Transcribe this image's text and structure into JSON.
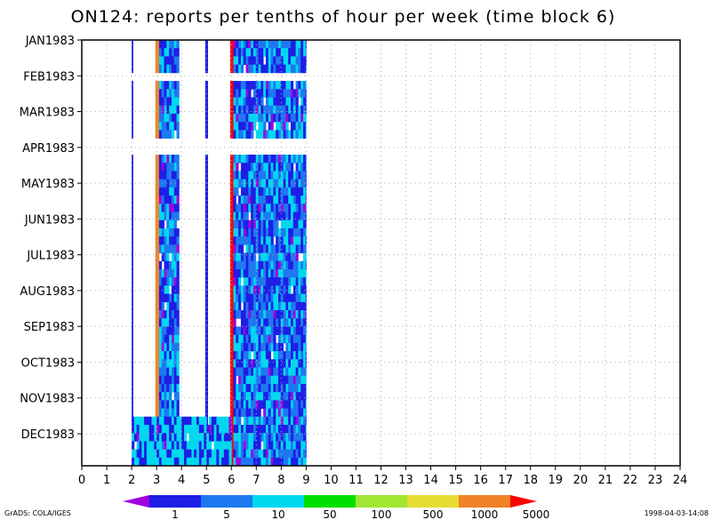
{
  "chart_data": {
    "type": "heatmap",
    "title": "ON124: reports per tenths of hour per week (time block 6)",
    "x_tick_labels": [
      "0",
      "1",
      "2",
      "3",
      "4",
      "5",
      "6",
      "7",
      "8",
      "9",
      "10",
      "11",
      "12",
      "13",
      "14",
      "15",
      "16",
      "17",
      "18",
      "19",
      "20",
      "21",
      "22",
      "23",
      "24"
    ],
    "xlim": [
      0,
      24
    ],
    "y_tick_labels": [
      "JAN1983",
      "FEB1983",
      "MAR1983",
      "APR1983",
      "MAY1983",
      "JUN1983",
      "JUL1983",
      "AUG1983",
      "SEP1983",
      "OCT1983",
      "NOV1983",
      "DEC1983"
    ],
    "grid": true,
    "colorbar": {
      "labels": [
        "1",
        "5",
        "10",
        "50",
        "100",
        "500",
        "1000",
        "5000"
      ],
      "colors": [
        "#a000e0",
        "#1e1ee6",
        "#1e78f0",
        "#00d8f0",
        "#00e000",
        "#a0e632",
        "#e6dc32",
        "#f08228",
        "#fa0000"
      ]
    },
    "regions": [
      {
        "x": [
          2.0,
          2.05
        ],
        "weeks": [
          0,
          47
        ],
        "level": 1
      },
      {
        "x": [
          2.95,
          3.1
        ],
        "weeks": [
          0,
          52
        ],
        "level": 7
      },
      {
        "x": [
          3.1,
          3.9
        ],
        "weeks": [
          0,
          52
        ],
        "level": 2
      },
      {
        "x": [
          4.95,
          5.05
        ],
        "weeks": [
          0,
          47
        ],
        "level": 1
      },
      {
        "x": [
          5.95,
          6.08
        ],
        "weeks": [
          0,
          52
        ],
        "level": 8
      },
      {
        "x": [
          6.08,
          9.0
        ],
        "weeks": [
          0,
          52
        ],
        "level": 2
      },
      {
        "x": [
          2.0,
          6.0
        ],
        "weeks": [
          46,
          52
        ],
        "level": 3
      }
    ],
    "missing_weeks": [
      4,
      12,
      13
    ]
  },
  "footer": {
    "left": "GrADS: COLA/IGES",
    "right": "1998-04-03-14:08"
  }
}
